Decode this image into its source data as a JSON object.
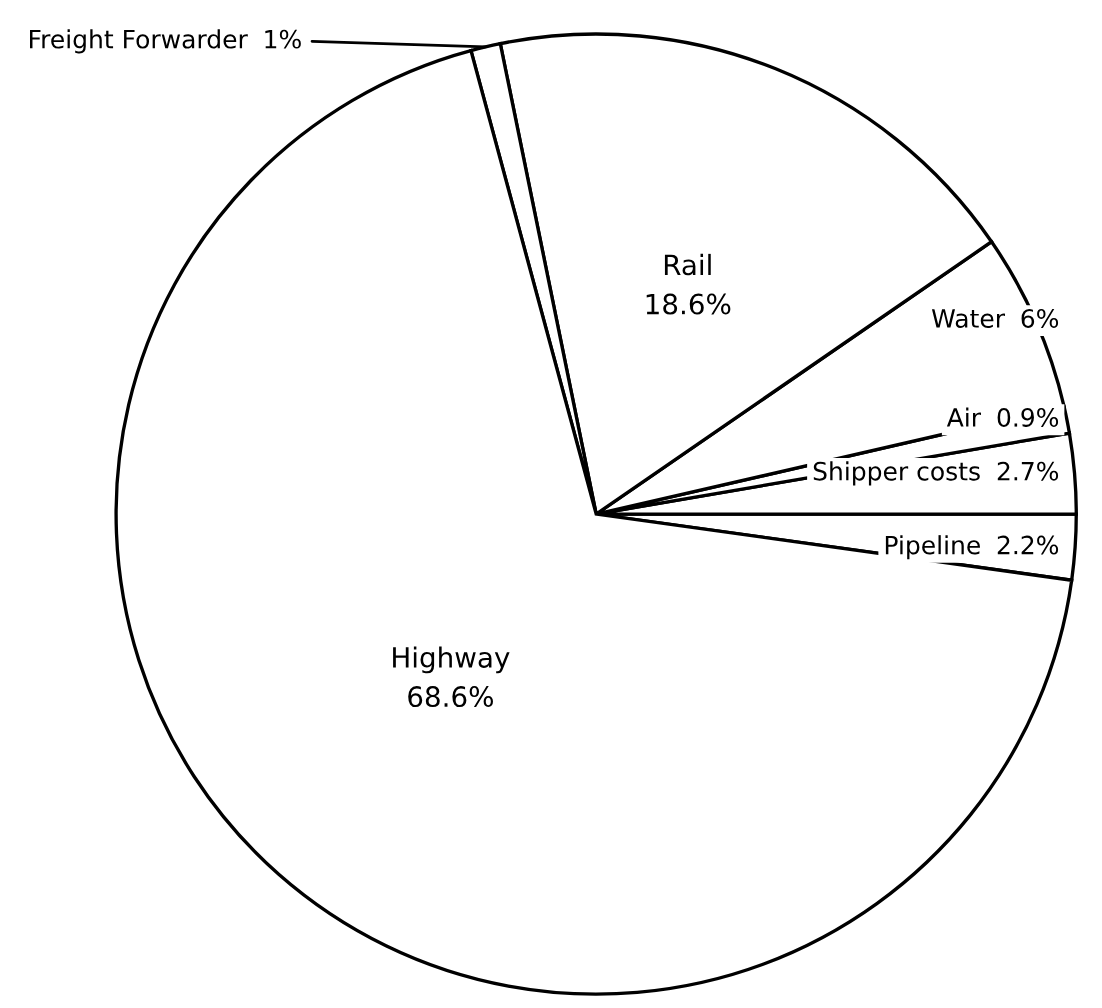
{
  "chart_data": {
    "type": "pie",
    "categories": [
      "Pipeline",
      "Shipper costs",
      "Air",
      "Water",
      "Rail",
      "Freight Forwarder",
      "Highway"
    ],
    "values": [
      2.2,
      2.7,
      0.9,
      6,
      18.6,
      1,
      68.6
    ],
    "value_labels": [
      "2.2%",
      "2.7%",
      "0.9%",
      "6%",
      "18.6%",
      "1%",
      "68.6%"
    ],
    "colors": [
      "#ffffff",
      "#ffffff",
      "#ffffff",
      "#ffffff",
      "#ffffff",
      "#ffffff",
      "#ffffff"
    ]
  }
}
